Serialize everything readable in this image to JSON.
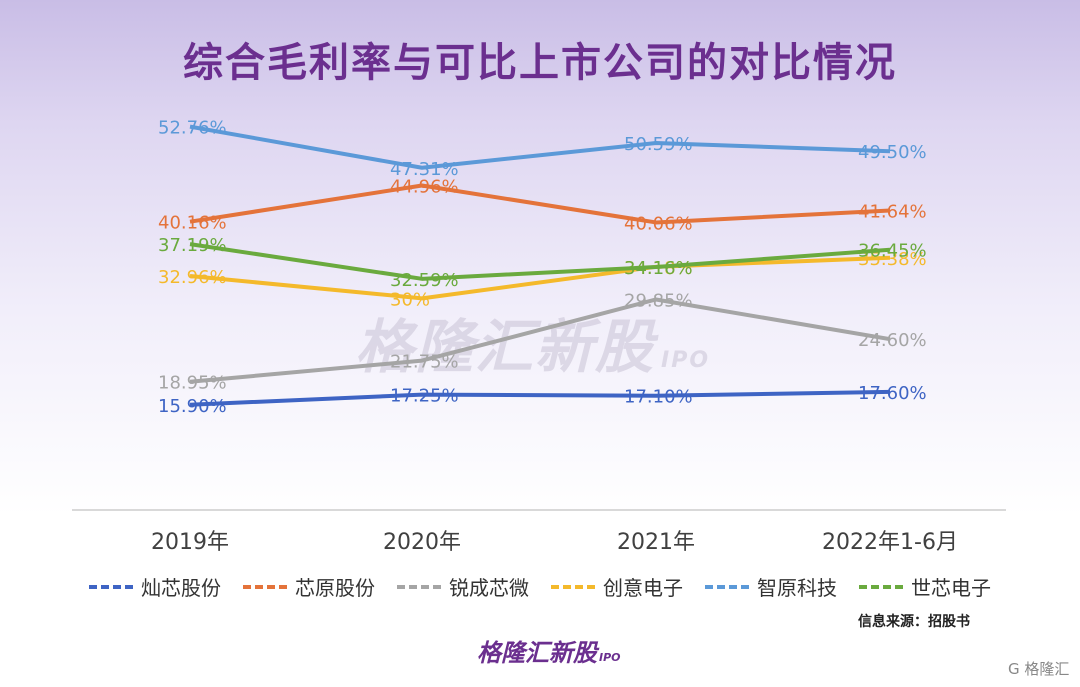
{
  "title": "综合毛利率与可比上市公司的对比情况",
  "watermark": {
    "text": "格隆汇新股",
    "ipo": "IPO"
  },
  "source": "信息来源：招股书",
  "brand": {
    "text": "格隆汇新股",
    "ipo": "IPO"
  },
  "corner": "G 格隆汇",
  "colors": {
    "灿芯股份": "#3e64c4",
    "芯原股份": "#e4733a",
    "锐成芯微": "#a5a5a5",
    "创意电子": "#f4b92b",
    "智原科技": "#5b99d8",
    "世芯电子": "#6aaa3e"
  },
  "chart_data": {
    "type": "line",
    "categories": [
      "2019年",
      "2020年",
      "2021年",
      "2022年1-6月"
    ],
    "series": [
      {
        "name": "灿芯股份",
        "values": [
          15.9,
          17.25,
          17.1,
          17.6
        ],
        "labels": [
          "15.90%",
          "17.25%",
          "17.10%",
          "17.60%"
        ]
      },
      {
        "name": "芯原股份",
        "values": [
          40.16,
          44.96,
          40.06,
          41.64
        ],
        "labels": [
          "40.16%",
          "44.96%",
          "40.06%",
          "41.64%"
        ]
      },
      {
        "name": "锐成芯微",
        "values": [
          18.95,
          21.75,
          29.85,
          24.6
        ],
        "labels": [
          "18.95%",
          "21.75%",
          "29.85%",
          "24.60%"
        ]
      },
      {
        "name": "创意电子",
        "values": [
          32.96,
          30,
          34.18,
          35.38
        ],
        "labels": [
          "32.96%",
          "30%",
          "34.18%",
          "35.38%"
        ]
      },
      {
        "name": "智原科技",
        "values": [
          52.76,
          47.31,
          50.59,
          49.5
        ],
        "labels": [
          "52.76%",
          "47.31%",
          "50.59%",
          "49.50%"
        ]
      },
      {
        "name": "世芯电子",
        "values": [
          37.19,
          32.59,
          34.16,
          36.45
        ],
        "labels": [
          "37.19%",
          "32.59%",
          "34.16%",
          "36.45%"
        ]
      }
    ],
    "ylim": [
      5,
      60
    ],
    "grid": false,
    "legend": "bottom"
  }
}
